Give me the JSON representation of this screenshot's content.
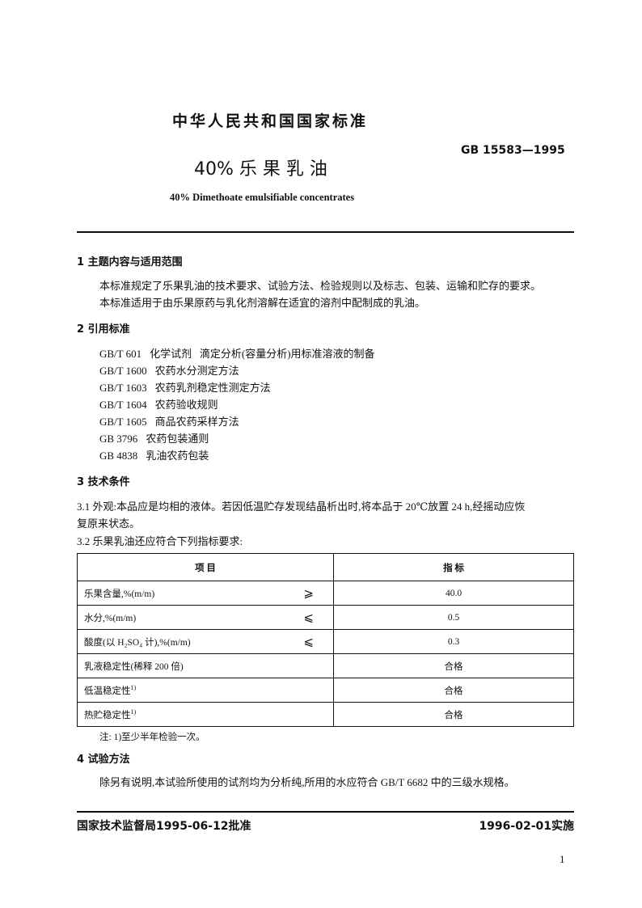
{
  "header": {
    "org": "中华人民共和国国家标准",
    "std_no": "GB 15583—1995",
    "title_cn": "40% 乐 果 乳 油",
    "title_en": "40% Dimethoate emulsifiable concentrates"
  },
  "sections": {
    "s1": {
      "heading": "1  主题内容与适用范围",
      "p1": "本标准规定了乐果乳油的技术要求、试验方法、检验规则以及标志、包装、运输和贮存的要求。",
      "p2": "本标准适用于由乐果原药与乳化剂溶解在适宜的溶剂中配制成的乳油。"
    },
    "s2": {
      "heading": "2  引用标准",
      "refs": [
        {
          "code": "GB/T 601",
          "title": "化学试剂   滴定分析(容量分析)用标准溶液的制备"
        },
        {
          "code": "GB/T 1600",
          "title": "农药水分测定方法"
        },
        {
          "code": "GB/T 1603",
          "title": "农药乳剂稳定性测定方法"
        },
        {
          "code": "GB/T 1604",
          "title": "农药验收规则"
        },
        {
          "code": "GB/T 1605",
          "title": "商品农药采样方法"
        },
        {
          "code": "GB 3796",
          "title": "农药包装通则"
        },
        {
          "code": "GB 4838",
          "title": "乳油农药包装"
        }
      ]
    },
    "s3": {
      "heading": "3  技术条件",
      "p31a": "3.1  外观:本品应是均相的液体。若因低温贮存发现结晶析出时,将本品于 20℃放置 24 h,经摇动应恢",
      "p31b": "复原来状态。",
      "p32": "3.2  乐果乳油还应符合下列指标要求:"
    },
    "s4": {
      "heading": "4  试验方法",
      "p": "除另有说明,本试验所使用的试剂均为分析纯,所用的水应符合 GB/T 6682 中的三级水规格。"
    }
  },
  "table": {
    "headers": [
      "项     目",
      "指     标"
    ],
    "rows": [
      {
        "item": "乐果含量,%(m/m)",
        "op": "⩾",
        "value": "40.0"
      },
      {
        "item": "水分,%(m/m)",
        "op": "⩽",
        "value": "0.5"
      },
      {
        "item": "酸度(以 H₂SO₄ 计),%(m/m)",
        "op": "⩽",
        "value": "0.3"
      },
      {
        "item": "乳液稳定性(稀释 200 倍)",
        "op": "",
        "value": "合格"
      },
      {
        "item": "低温稳定性",
        "sup": "1)",
        "op": "",
        "value": "合格"
      },
      {
        "item": "热贮稳定性",
        "sup": "1)",
        "op": "",
        "value": "合格"
      }
    ],
    "note": "注: 1)至少半年检验一次。"
  },
  "footer": {
    "approved": "国家技术监督局1995-06-12批准",
    "effective": "1996-02-01实施",
    "page": "1"
  }
}
